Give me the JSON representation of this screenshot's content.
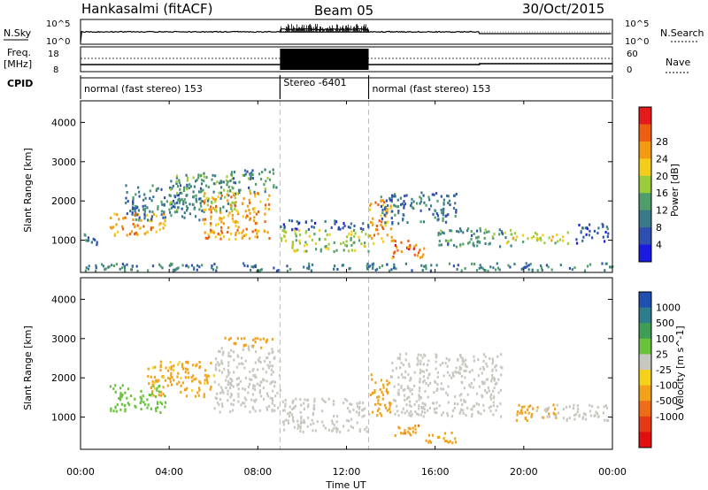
{
  "header": {
    "station": "Hankasalmi (fitACF)",
    "beam": "Beam 05",
    "date": "30/Oct/2015"
  },
  "left_labels": {
    "nsky": "N.Sky",
    "freq": "Freq.",
    "freq_unit": "[MHz]",
    "cpid": "CPID"
  },
  "right_labels": {
    "nsearch": "N.Search",
    "nave": "Nave"
  },
  "noise_axis": {
    "left_top": "10^5",
    "left_bottom": "10^0",
    "right_top": "10^5",
    "right_bottom": "10^0"
  },
  "freq_axis": {
    "left_top": "18",
    "left_bottom": "8",
    "right_top": "60",
    "right_bottom": "0"
  },
  "cpid_segments": [
    {
      "label": "normal (fast stereo) 153",
      "start_hour": 0,
      "end_hour": 9
    },
    {
      "label": "Stereo -6401",
      "start_hour": 9,
      "end_hour": 13
    },
    {
      "label": "normal (fast stereo) 153",
      "start_hour": 13,
      "end_hour": 24
    }
  ],
  "power_colorbar": {
    "label": "Power [dB]",
    "ticks": [
      "4",
      "8",
      "12",
      "16",
      "20",
      "24",
      "28"
    ],
    "colors": [
      "#1a1ae0",
      "#2f4fb0",
      "#3a7a88",
      "#4f9d6b",
      "#9acb3a",
      "#f4cc1a",
      "#f19a12",
      "#ec5e10",
      "#e41a1c"
    ]
  },
  "velocity_colorbar": {
    "label": "Velocity [m s^-1]",
    "ticks": [
      "1000",
      "500",
      "100",
      "25",
      "-25",
      "-100",
      "-500",
      "-1000"
    ],
    "colors": [
      "#1f4fb0",
      "#2f7d8c",
      "#3f9d55",
      "#68c23a",
      "#c8c8c0",
      "#f4d21a",
      "#f2a11a",
      "#ee6d16",
      "#e63a14",
      "#e01010"
    ]
  },
  "x_axis": {
    "title": "Time UT",
    "ticks": [
      "00:00",
      "04:00",
      "08:00",
      "12:00",
      "16:00",
      "20:00",
      "00:00"
    ]
  },
  "chart_data": [
    {
      "type": "heatmap",
      "title": "",
      "xlabel": "Time UT",
      "ylabel": "Slant Range [km]",
      "xlim_hours": [
        0,
        24
      ],
      "ylim_km": [
        180,
        4550
      ],
      "y_ticks": [
        1000,
        2000,
        3000,
        4000
      ],
      "quantity": "Power [dB]",
      "regions": [
        {
          "t0": 0.1,
          "t1": 1.0,
          "r0": 850,
          "r1": 1150,
          "value": 8
        },
        {
          "t0": 1.3,
          "t1": 3.8,
          "r0": 1100,
          "r1": 1700,
          "value": 26
        },
        {
          "t0": 2.0,
          "t1": 5.5,
          "r0": 1500,
          "r1": 2400,
          "value": 10
        },
        {
          "t0": 4.0,
          "t1": 7.0,
          "r0": 1700,
          "r1": 2700,
          "value": 14
        },
        {
          "t0": 5.5,
          "t1": 8.5,
          "r0": 1000,
          "r1": 2200,
          "value": 26
        },
        {
          "t0": 6.5,
          "t1": 8.8,
          "r0": 2200,
          "r1": 2800,
          "value": 12
        },
        {
          "t0": 9.0,
          "t1": 13.0,
          "r0": 1250,
          "r1": 1500,
          "value": 6
        },
        {
          "t0": 9.0,
          "t1": 13.0,
          "r0": 700,
          "r1": 1250,
          "value": 18
        },
        {
          "t0": 13.0,
          "t1": 14.0,
          "r0": 900,
          "r1": 2000,
          "value": 26
        },
        {
          "t0": 14.0,
          "t1": 15.5,
          "r0": 500,
          "r1": 1000,
          "value": 28
        },
        {
          "t0": 13.5,
          "t1": 17.0,
          "r0": 1400,
          "r1": 2200,
          "value": 9
        },
        {
          "t0": 16.0,
          "t1": 19.5,
          "r0": 800,
          "r1": 1300,
          "value": 12
        },
        {
          "t0": 19.0,
          "t1": 22.0,
          "r0": 900,
          "r1": 1200,
          "value": 20
        },
        {
          "t0": 22.3,
          "t1": 23.8,
          "r0": 900,
          "r1": 1400,
          "value": 8
        },
        {
          "t0": 0.0,
          "t1": 24.0,
          "r0": 200,
          "r1": 400,
          "value": 10
        }
      ]
    },
    {
      "type": "heatmap",
      "title": "",
      "xlabel": "Time UT",
      "ylabel": "Slant Range [km]",
      "xlim_hours": [
        0,
        24
      ],
      "ylim_km": [
        180,
        4550
      ],
      "y_ticks": [
        1000,
        2000,
        3000,
        4000
      ],
      "quantity": "Velocity [m s^-1]",
      "regions": [
        {
          "t0": 1.3,
          "t1": 3.8,
          "r0": 1100,
          "r1": 1800,
          "value": 60
        },
        {
          "t0": 3.0,
          "t1": 6.0,
          "r0": 1500,
          "r1": 2400,
          "value": -150
        },
        {
          "t0": 6.0,
          "t1": 9.0,
          "r0": 1100,
          "r1": 2800,
          "value": 0
        },
        {
          "t0": 9.0,
          "t1": 13.0,
          "r0": 600,
          "r1": 1450,
          "value": 0
        },
        {
          "t0": 13.0,
          "t1": 14.0,
          "r0": 1000,
          "r1": 2100,
          "value": -300
        },
        {
          "t0": 14.0,
          "t1": 15.5,
          "r0": 500,
          "r1": 800,
          "value": -400
        },
        {
          "t0": 15.5,
          "t1": 17.0,
          "r0": 300,
          "r1": 600,
          "value": -350
        },
        {
          "t0": 14.0,
          "t1": 19.0,
          "r0": 1000,
          "r1": 2600,
          "value": 0
        },
        {
          "t0": 19.5,
          "t1": 21.5,
          "r0": 900,
          "r1": 1300,
          "value": -200
        },
        {
          "t0": 20.5,
          "t1": 23.8,
          "r0": 900,
          "r1": 1300,
          "value": 0
        },
        {
          "t0": 6.3,
          "t1": 8.7,
          "r0": 2750,
          "r1": 3000,
          "value": -200
        }
      ]
    }
  ]
}
